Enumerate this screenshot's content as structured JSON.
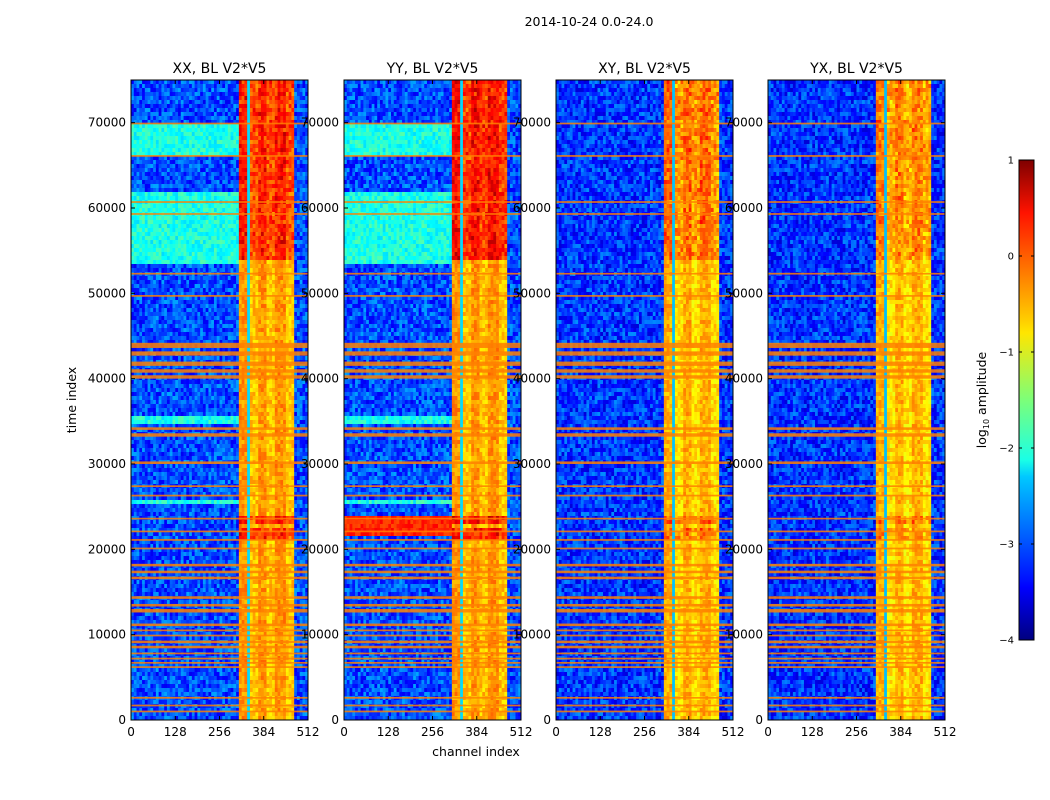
{
  "figure": {
    "suptitle": "2014-10-24 0.0-24.0",
    "xlabel": "channel index",
    "ylabel": "time index"
  },
  "chart_data": {
    "type": "heatmap",
    "x_ticks": [
      0,
      128,
      256,
      384,
      512
    ],
    "y_ticks": [
      0,
      10000,
      20000,
      30000,
      40000,
      50000,
      60000,
      70000
    ],
    "xlim": [
      0,
      512
    ],
    "ylim": [
      0,
      75000
    ],
    "panels": [
      {
        "title": "XX, BL V2*V5"
      },
      {
        "title": "YY, BL V2*V5"
      },
      {
        "title": "XY, BL V2*V5"
      },
      {
        "title": "YX, BL V2*V5"
      }
    ],
    "colorbar": {
      "label_prefix": "log",
      "label_subscript": "10",
      "label_suffix": " amplitude",
      "ticks": [
        1,
        0,
        -1,
        -2,
        -3,
        -4
      ],
      "tick_labels": [
        "1",
        "0",
        "−1",
        "−2",
        "−3",
        "−4"
      ],
      "range": [
        -4,
        1
      ],
      "colormap": "jet"
    }
  }
}
